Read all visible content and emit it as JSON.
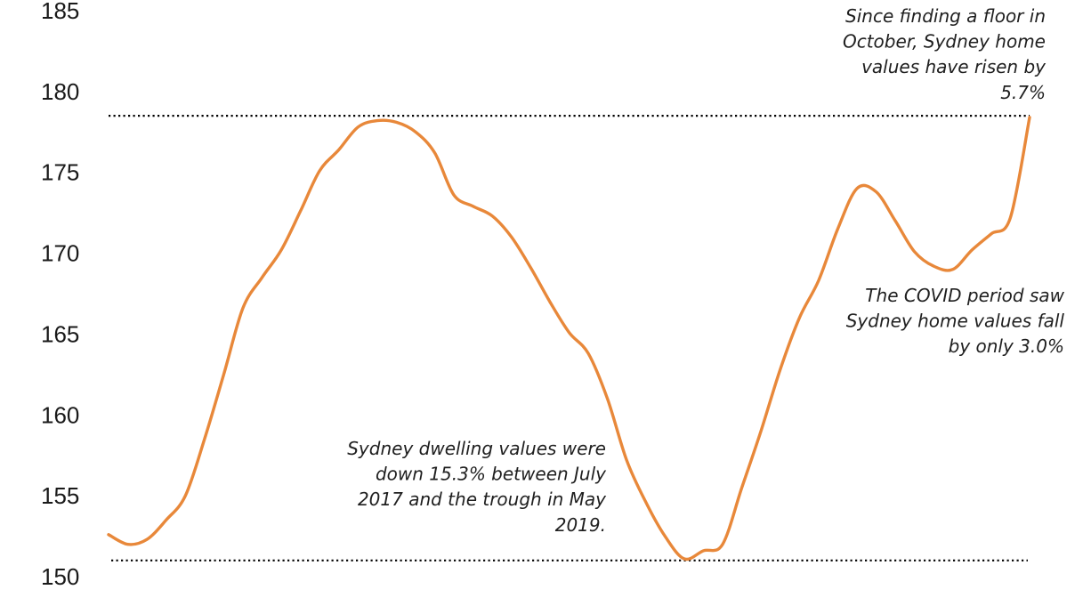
{
  "chart_data": {
    "type": "line",
    "title": "",
    "xlabel": "",
    "ylabel": "",
    "ylim": [
      150,
      185
    ],
    "yticks": [
      185,
      180,
      175,
      170,
      165,
      160,
      155,
      150
    ],
    "grid": false,
    "legend": "none",
    "series": [
      {
        "color": "#E8883A",
        "values": [
          152.6,
          152.0,
          152.3,
          153.5,
          155.0,
          158.5,
          162.5,
          166.6,
          168.5,
          170.2,
          172.6,
          175.1,
          176.4,
          177.8,
          178.2,
          178.1,
          177.5,
          176.2,
          173.6,
          172.9,
          172.3,
          171.0,
          169.1,
          167.0,
          165.1,
          163.8,
          161.0,
          157.2,
          154.6,
          152.5,
          151.1,
          151.6,
          152.0,
          155.5,
          159.0,
          162.8,
          166.0,
          168.3,
          171.5,
          174.0,
          173.8,
          172.0,
          170.1,
          169.2,
          169.0,
          170.2,
          171.2,
          172.2,
          178.4
        ]
      }
    ],
    "reference_lines": [
      {
        "y": 178.5,
        "style": "dotted",
        "color": "#000000"
      },
      {
        "y": 151.0,
        "style": "dotted",
        "color": "#000000"
      }
    ],
    "annotations": [
      {
        "lines": [
          "Since finding a floor in",
          "October, Sydney home",
          "values have risen by",
          "5.7%"
        ]
      },
      {
        "lines": [
          "The COVID period saw",
          "Sydney home values fall",
          "by only 3.0%"
        ]
      },
      {
        "lines": [
          "Sydney dwelling values were",
          "down 15.3% between July",
          "2017 and the trough in May",
          "2019."
        ]
      }
    ]
  }
}
